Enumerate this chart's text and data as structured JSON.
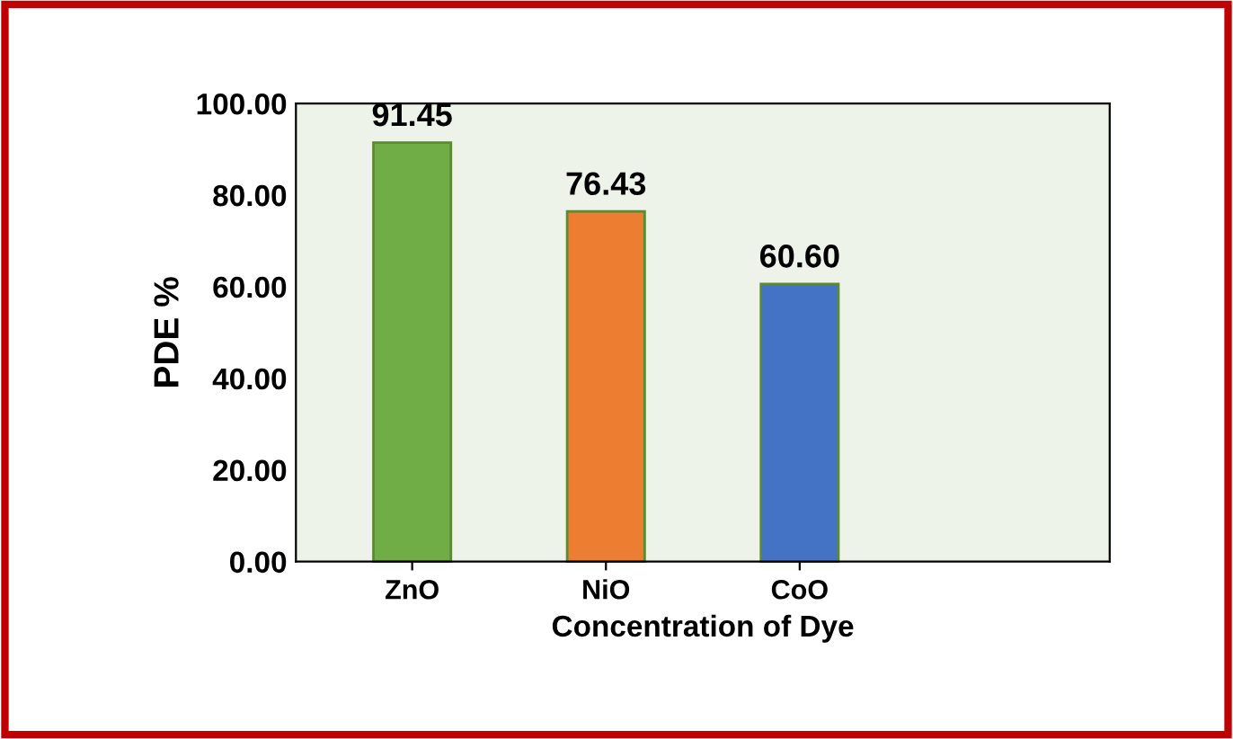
{
  "chart_data": {
    "type": "bar",
    "xlabel": "Concentration of Dye",
    "ylabel": "PDE %",
    "categories": [
      "ZnO",
      "NiO",
      "CoO"
    ],
    "values": [
      91.45,
      76.43,
      60.6
    ],
    "colors": [
      "#70ad47",
      "#ed7d31",
      "#4472c4"
    ],
    "value_labels": [
      "91.45",
      "76.43",
      "60.60"
    ],
    "ylim": [
      0,
      100
    ],
    "yticks": [
      {
        "value": 0,
        "label": "0.00"
      },
      {
        "value": 20,
        "label": "20.00"
      },
      {
        "value": 40,
        "label": "40.00"
      },
      {
        "value": 60,
        "label": "60.00"
      },
      {
        "value": 80,
        "label": "80.00"
      },
      {
        "value": 100,
        "label": "100.00"
      }
    ],
    "grid": false
  }
}
